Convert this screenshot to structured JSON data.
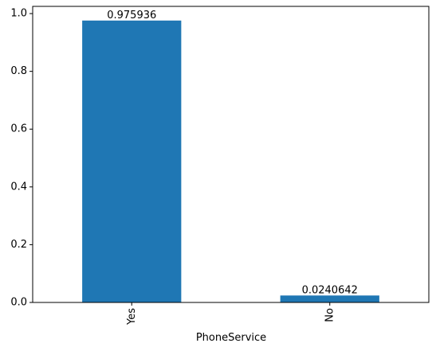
{
  "chart_data": {
    "type": "bar",
    "title": "",
    "xlabel": "PhoneService",
    "ylabel": "",
    "categories": [
      "Yes",
      "No"
    ],
    "values": [
      0.975936,
      0.0240642
    ],
    "data_labels": [
      "0.975936",
      "0.0240642"
    ],
    "ylim": [
      0,
      1.025
    ],
    "yticks": [
      0.0,
      0.2,
      0.4,
      0.6,
      0.8,
      1.0
    ],
    "ytick_labels": [
      "0.0",
      "0.2",
      "0.4",
      "0.6",
      "0.8",
      "1.0"
    ],
    "x_tick_rotation": "vertical",
    "grid": false,
    "legend": "none",
    "bar_color": "#1f77b4",
    "axis_color": "#000000",
    "background": "#ffffff"
  }
}
